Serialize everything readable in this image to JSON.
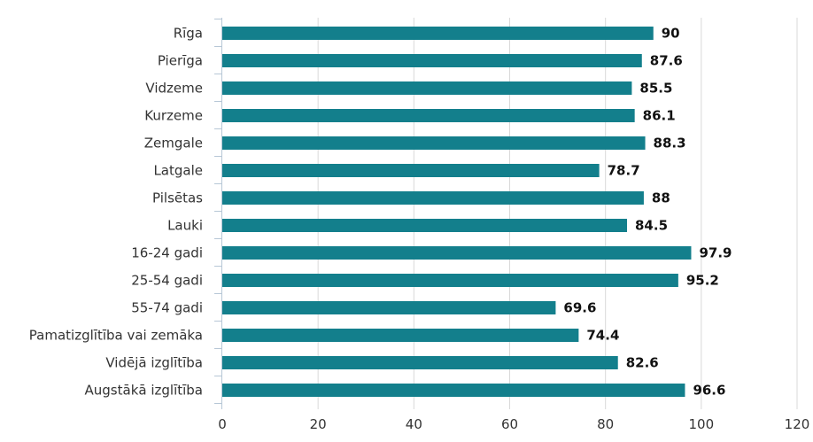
{
  "chart_data": {
    "type": "bar",
    "orientation": "horizontal",
    "categories": [
      "Rīga",
      "Pierīga",
      "Vidzeme",
      "Kurzeme",
      "Zemgale",
      "Latgale",
      "Pilsētas",
      "Lauki",
      "16-24 gadi",
      "25-54 gadi",
      "55-74 gadi",
      "Pamatizglītība vai zemāka",
      "Vidējā izglītība",
      "Augstākā izglītība"
    ],
    "values": [
      90,
      87.6,
      85.5,
      86.1,
      88.3,
      78.7,
      88,
      84.5,
      97.9,
      95.2,
      69.6,
      74.4,
      82.6,
      96.6
    ],
    "value_labels": [
      "90",
      "87.6",
      "85.5",
      "86.1",
      "88.3",
      "78.7",
      "88",
      "84.5",
      "97.9",
      "95.2",
      "69.6",
      "74.4",
      "82.6",
      "96.6"
    ],
    "title": "",
    "xlabel": "",
    "ylabel": "",
    "xlim": [
      0,
      120
    ],
    "xticks": [
      0,
      20,
      40,
      60,
      80,
      100,
      120
    ],
    "xtick_labels": [
      "0",
      "20",
      "40",
      "60",
      "80",
      "100",
      "120"
    ],
    "grid": "vertical",
    "legend": "none",
    "bar_color": "#137f8c",
    "grid_color": "#d9d9d9",
    "axis_color": "#b7c7d6"
  }
}
